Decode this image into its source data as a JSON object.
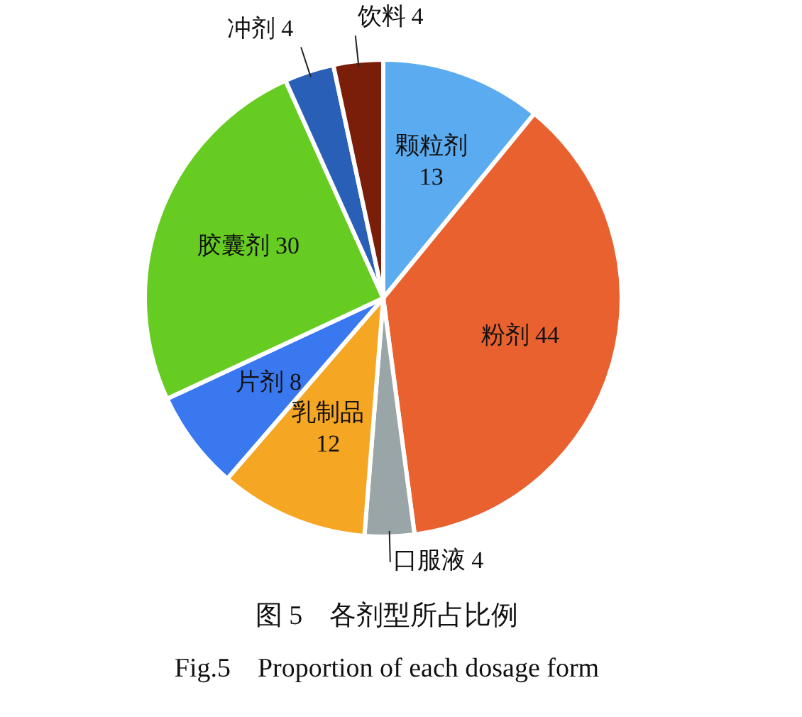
{
  "chart_data": {
    "type": "pie",
    "title": "图 5　各剂型所占比例",
    "subtitle": "Fig.5　Proportion of each dosage form",
    "categories": [
      "颗粒剂",
      "粉剂",
      "口服液",
      "乳制品",
      "片剂",
      "胶囊剂",
      "冲剂",
      "饮料"
    ],
    "values": [
      13,
      44,
      4,
      12,
      8,
      30,
      4,
      4
    ],
    "colors": [
      "#5aabf0",
      "#e8612e",
      "#9aa5a8",
      "#f5a623",
      "#3a78f0",
      "#66cc22",
      "#2a5fb8",
      "#7a1e0a"
    ],
    "data_labels": true
  }
}
